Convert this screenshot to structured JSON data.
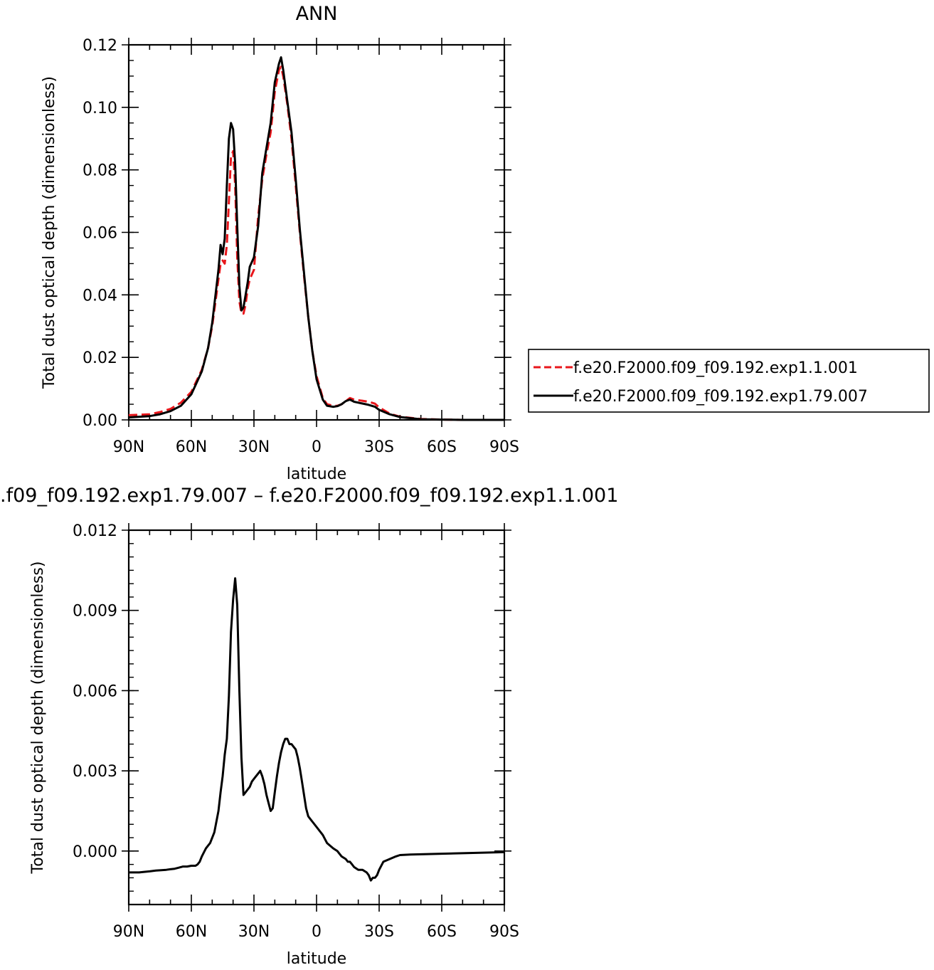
{
  "chart_data": [
    {
      "type": "line",
      "title": "ANN",
      "xlabel": "latitude",
      "ylabel": "Total dust optical depth (dimensionless)",
      "x_range": [
        90,
        -90
      ],
      "ylim": [
        0,
        0.12
      ],
      "x_ticks": [
        {
          "value": 90,
          "label": "90N"
        },
        {
          "value": 60,
          "label": "60N"
        },
        {
          "value": 30,
          "label": "30N"
        },
        {
          "value": 0,
          "label": "0"
        },
        {
          "value": -30,
          "label": "30S"
        },
        {
          "value": -60,
          "label": "60S"
        },
        {
          "value": -90,
          "label": "90S"
        }
      ],
      "y_ticks": [
        {
          "value": 0.0,
          "label": "0.00"
        },
        {
          "value": 0.02,
          "label": "0.02"
        },
        {
          "value": 0.04,
          "label": "0.04"
        },
        {
          "value": 0.06,
          "label": "0.06"
        },
        {
          "value": 0.08,
          "label": "0.08"
        },
        {
          "value": 0.1,
          "label": "0.10"
        },
        {
          "value": 0.12,
          "label": "0.12"
        }
      ],
      "legend_position": "right",
      "series": [
        {
          "name": "f.e20.F2000.f09_f09.192.exp1.1.001",
          "color": "#e8161b",
          "style": "dashed",
          "x": [
            90,
            80,
            75,
            70,
            65,
            60,
            55,
            52,
            50,
            47,
            46,
            45,
            44,
            43,
            42,
            41,
            40,
            39,
            38,
            37,
            36,
            35,
            34,
            33,
            32,
            30,
            28,
            26,
            24,
            22,
            20,
            18,
            17,
            16,
            14,
            12,
            10,
            8,
            6,
            4,
            2,
            0,
            -3,
            -5,
            -8,
            -10,
            -12,
            -14,
            -16,
            -18,
            -20,
            -25,
            -28,
            -30,
            -35,
            -40,
            -50,
            -60,
            -70,
            -90
          ],
          "y": [
            0.0015,
            0.0018,
            0.0025,
            0.0035,
            0.0055,
            0.009,
            0.016,
            0.023,
            0.03,
            0.045,
            0.05,
            0.051,
            0.05,
            0.056,
            0.07,
            0.084,
            0.086,
            0.075,
            0.052,
            0.038,
            0.034,
            0.034,
            0.037,
            0.042,
            0.045,
            0.048,
            0.065,
            0.077,
            0.085,
            0.092,
            0.105,
            0.112,
            0.113,
            0.11,
            0.101,
            0.09,
            0.075,
            0.06,
            0.046,
            0.033,
            0.022,
            0.014,
            0.007,
            0.005,
            0.0045,
            0.0045,
            0.005,
            0.006,
            0.007,
            0.0065,
            0.0063,
            0.0058,
            0.0052,
            0.004,
            0.002,
            0.001,
            0.0003,
            0.0001,
            0.0,
            0.0
          ]
        },
        {
          "name": "f.e20.F2000.f09_f09.192.exp1.79.007",
          "color": "#000000",
          "style": "solid",
          "x": [
            90,
            80,
            75,
            70,
            65,
            60,
            55,
            52,
            50,
            47,
            46,
            45,
            44,
            43,
            42,
            41,
            40,
            39,
            38,
            37,
            36,
            35,
            34,
            33,
            32,
            30,
            28,
            26,
            24,
            22,
            20,
            18,
            17,
            16,
            14,
            12,
            10,
            8,
            6,
            4,
            2,
            0,
            -3,
            -5,
            -8,
            -10,
            -12,
            -14,
            -16,
            -18,
            -20,
            -25,
            -28,
            -30,
            -35,
            -40,
            -50,
            -60,
            -70,
            -90
          ],
          "y": [
            0.0008,
            0.0012,
            0.0018,
            0.0028,
            0.0045,
            0.0082,
            0.0155,
            0.023,
            0.031,
            0.048,
            0.056,
            0.053,
            0.058,
            0.075,
            0.09,
            0.095,
            0.093,
            0.082,
            0.062,
            0.043,
            0.035,
            0.036,
            0.04,
            0.044,
            0.049,
            0.052,
            0.062,
            0.079,
            0.087,
            0.095,
            0.108,
            0.114,
            0.116,
            0.112,
            0.102,
            0.092,
            0.077,
            0.061,
            0.047,
            0.033,
            0.022,
            0.013,
            0.0065,
            0.0045,
            0.0042,
            0.0044,
            0.005,
            0.006,
            0.0065,
            0.0058,
            0.0055,
            0.0048,
            0.0042,
            0.0032,
            0.0018,
            0.0009,
            0.0002,
            0.0001,
            0.0,
            0.0
          ]
        }
      ]
    },
    {
      "type": "line",
      "title": ".f09_f09.192.exp1.79.007 – f.e20.F2000.f09_f09.192.exp1.1.001",
      "xlabel": "latitude",
      "ylabel": "Total dust optical depth (dimensionless)",
      "x_range": [
        90,
        -90
      ],
      "ylim": [
        -0.002,
        0.012
      ],
      "x_ticks": [
        {
          "value": 90,
          "label": "90N"
        },
        {
          "value": 60,
          "label": "60N"
        },
        {
          "value": 30,
          "label": "30N"
        },
        {
          "value": 0,
          "label": "0"
        },
        {
          "value": -30,
          "label": "30S"
        },
        {
          "value": -60,
          "label": "60S"
        },
        {
          "value": -90,
          "label": "90S"
        }
      ],
      "y_ticks": [
        {
          "value": 0.0,
          "label": "0.000"
        },
        {
          "value": 0.003,
          "label": "0.003"
        },
        {
          "value": 0.006,
          "label": "0.006"
        },
        {
          "value": 0.009,
          "label": "0.009"
        },
        {
          "value": 0.012,
          "label": "0.012"
        }
      ],
      "series": [
        {
          "color": "#000000",
          "style": "solid",
          "x": [
            90,
            87,
            85,
            83,
            80,
            77,
            75,
            72,
            70,
            68,
            66,
            64,
            62,
            60,
            58,
            57,
            56,
            55,
            53,
            51,
            49,
            47,
            46,
            45,
            44,
            43,
            42,
            41,
            40,
            39,
            38,
            37,
            36,
            35,
            34,
            33,
            32,
            31,
            30,
            29,
            28,
            27,
            26,
            25,
            24,
            23,
            22,
            21,
            20,
            19,
            18,
            17,
            16,
            15,
            14,
            13,
            12,
            11,
            10,
            9,
            8,
            7,
            6,
            5,
            4,
            3,
            2,
            0,
            -3,
            -5,
            -8,
            -10,
            -12,
            -14,
            -15,
            -16,
            -17,
            -18,
            -20,
            -22,
            -24,
            -25,
            -26,
            -27,
            -28,
            -29,
            -30,
            -32,
            -35,
            -38,
            -40,
            -45,
            -50,
            -60,
            -70,
            -80,
            -90
          ],
          "y": [
            -0.0008,
            -0.0008,
            -0.0008,
            -0.00078,
            -0.00076,
            -0.00073,
            -0.00072,
            -0.0007,
            -0.00068,
            -0.00066,
            -0.00062,
            -0.00058,
            -0.00058,
            -0.00055,
            -0.00055,
            -0.0005,
            -0.0004,
            -0.0002,
            0.0001,
            0.0003,
            0.0007,
            0.0015,
            0.0022,
            0.0028,
            0.0036,
            0.0042,
            0.0058,
            0.0082,
            0.0094,
            0.0102,
            0.0092,
            0.006,
            0.0035,
            0.0021,
            0.0022,
            0.0023,
            0.0024,
            0.0026,
            0.0027,
            0.0028,
            0.0029,
            0.003,
            0.0028,
            0.0025,
            0.0021,
            0.0018,
            0.0015,
            0.0016,
            0.0022,
            0.0028,
            0.0033,
            0.0037,
            0.004,
            0.0042,
            0.0042,
            0.004,
            0.004,
            0.0039,
            0.0038,
            0.0035,
            0.0031,
            0.0026,
            0.0021,
            0.0016,
            0.0013,
            0.0012,
            0.0011,
            0.0009,
            0.0006,
            0.0003,
            0.0001,
            0.0,
            -0.0002,
            -0.0003,
            -0.0004,
            -0.0004,
            -0.0005,
            -0.0006,
            -0.0007,
            -0.0007,
            -0.0008,
            -0.0009,
            -0.0011,
            -0.001,
            -0.001,
            -0.0009,
            -0.0007,
            -0.0004,
            -0.0003,
            -0.0002,
            -0.00015,
            -0.00013,
            -0.00012,
            -0.0001,
            -8e-05,
            -6e-05,
            -4e-05
          ]
        }
      ]
    }
  ]
}
